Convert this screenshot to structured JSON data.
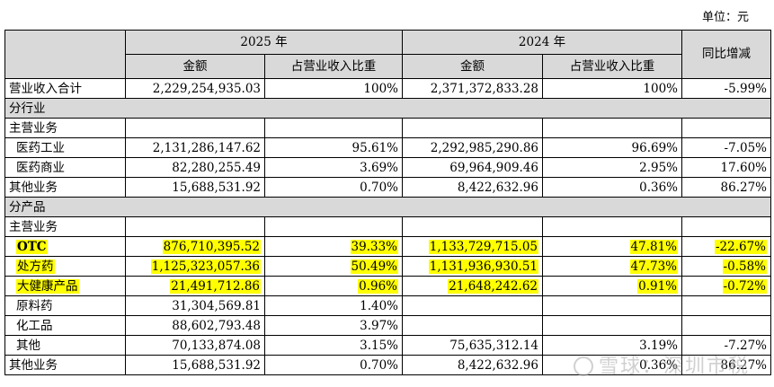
{
  "unit_label": "单位：元",
  "header": {
    "year_2025": "2025 年",
    "year_2024": "2024 年",
    "yoy": "同比增减",
    "amount": "金额",
    "ratio": "占营业收入比重"
  },
  "total_row": {
    "label": "营业收入合计",
    "amt_2025": "2,229,254,935.03",
    "pct_2025": "100%",
    "amt_2024": "2,371,372,833.28",
    "pct_2024": "100%",
    "yoy": "-5.99%"
  },
  "section_industry": {
    "title": "分行业",
    "rows": [
      {
        "label": "主营业务",
        "amt_2025": "",
        "pct_2025": "",
        "amt_2024": "",
        "pct_2024": "",
        "yoy": ""
      },
      {
        "label": "医药工业",
        "amt_2025": "2,131,286,147.62",
        "pct_2025": "95.61%",
        "amt_2024": "2,292,985,290.86",
        "pct_2024": "96.69%",
        "yoy": "-7.05%"
      },
      {
        "label": "医药商业",
        "amt_2025": "82,280,255.49",
        "pct_2025": "3.69%",
        "amt_2024": "69,964,909.46",
        "pct_2024": "2.95%",
        "yoy": "17.60%"
      },
      {
        "label": "其他业务",
        "amt_2025": "15,688,531.92",
        "pct_2025": "0.70%",
        "amt_2024": "8,422,632.96",
        "pct_2024": "0.36%",
        "yoy": "86.27%"
      }
    ]
  },
  "section_product": {
    "title": "分产品",
    "rows": [
      {
        "label": "主营业务",
        "amt_2025": "",
        "pct_2025": "",
        "amt_2024": "",
        "pct_2024": "",
        "yoy": ""
      },
      {
        "label": "OTC",
        "amt_2025": "876,710,395.52",
        "pct_2025": "39.33%",
        "amt_2024": "1,133,729,715.05",
        "pct_2024": "47.81%",
        "yoy": "-22.67%"
      },
      {
        "label": "处方药",
        "amt_2025": "1,125,323,057.36",
        "pct_2025": "50.49%",
        "amt_2024": "1,131,936,930.51",
        "pct_2024": "47.73%",
        "yoy": "-0.58%"
      },
      {
        "label": "大健康产品",
        "amt_2025": "21,491,712.86",
        "pct_2025": "0.96%",
        "amt_2024": "21,648,242.62",
        "pct_2024": "0.91%",
        "yoy": "-0.72%"
      },
      {
        "label": "原料药",
        "amt_2025": "31,304,569.81",
        "pct_2025": "1.40%",
        "amt_2024": "",
        "pct_2024": "",
        "yoy": ""
      },
      {
        "label": "化工品",
        "amt_2025": "88,602,793.48",
        "pct_2025": "3.97%",
        "amt_2024": "",
        "pct_2024": "",
        "yoy": ""
      },
      {
        "label": "其他",
        "amt_2025": "70,133,874.08",
        "pct_2025": "3.15%",
        "amt_2024": "75,635,312.14",
        "pct_2024": "3.19%",
        "yoy": "-7.27%"
      },
      {
        "label": "其他业务",
        "amt_2025": "15,688,531.92",
        "pct_2025": "0.70%",
        "amt_2024": "8,422,632.96",
        "pct_2024": "0.36%",
        "yoy": "86.27%"
      }
    ]
  },
  "watermark": "雪球：深圳市税",
  "colors": {
    "highlight": "#ffff00",
    "header_bg": "#d9d9d9"
  }
}
